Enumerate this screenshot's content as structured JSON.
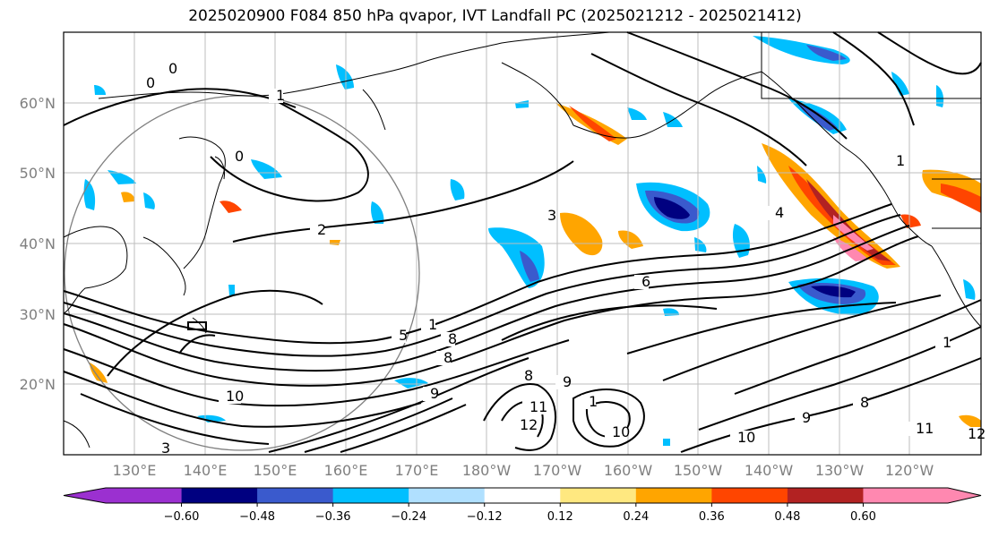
{
  "title": "2025020900 F084 850 hPa qvapor, IVT Landfall PC (2025021212 - 2025021412)",
  "latitude_labels": [
    "60°N",
    "50°N",
    "40°N",
    "30°N",
    "20°N"
  ],
  "longitude_labels": [
    "130°E",
    "140°E",
    "150°E",
    "160°E",
    "170°E",
    "180°W",
    "170°W",
    "160°W",
    "150°W",
    "140°W",
    "130°W",
    "120°W"
  ],
  "colorbar": {
    "tick_labels": [
      "−0.60",
      "−0.48",
      "−0.36",
      "−0.24",
      "−0.12",
      "0.12",
      "0.24",
      "0.36",
      "0.48",
      "0.60"
    ],
    "colors": [
      "#9b30d0",
      "#000080",
      "#3a5acd",
      "#00bfff",
      "#b0e0ff",
      "#ffffff",
      "#ffe880",
      "#ffa500",
      "#ff4500",
      "#b22222",
      "#ff88b0"
    ]
  },
  "contour_labels": [
    "0",
    "0",
    "1",
    "0",
    "2",
    "3",
    "4",
    "5",
    "6",
    "8",
    "8",
    "8",
    "9",
    "9",
    "10",
    "10",
    "10",
    "11",
    "12",
    "1",
    "8",
    "9",
    "11",
    "12",
    "1",
    "3",
    "1",
    "1"
  ],
  "colors": {
    "frame": "#000000",
    "grid": "#bdbdbd",
    "contour": "#000000",
    "coast": "#000000",
    "circle": "#808080"
  }
}
